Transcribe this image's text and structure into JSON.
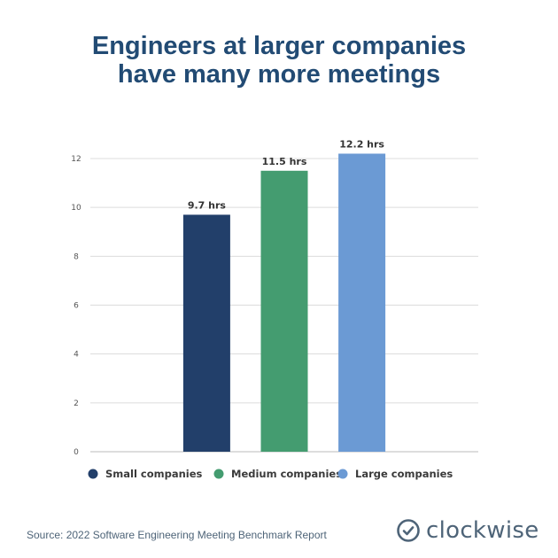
{
  "title_lines": [
    "Engineers at larger companies",
    "have many more meetings"
  ],
  "chart_data": {
    "type": "bar",
    "categories": [
      "Small companies",
      "Medium companies",
      "Large companies"
    ],
    "values": [
      9.7,
      11.5,
      12.2
    ],
    "data_labels": [
      "9.7 hrs",
      "11.5 hrs",
      "12.2 hrs"
    ],
    "colors": [
      "#223f6a",
      "#449c70",
      "#6b9ad4"
    ],
    "ylim": [
      0,
      12
    ],
    "yticks": [
      0,
      2,
      4,
      6,
      8,
      10,
      12
    ],
    "grid": true,
    "legend": "bottom",
    "xlabel": "",
    "ylabel": ""
  },
  "source": "Source: 2022 Software Engineering Meeting Benchmark Report",
  "logo": {
    "text": "clockwise",
    "icon": "clock-check-icon"
  }
}
